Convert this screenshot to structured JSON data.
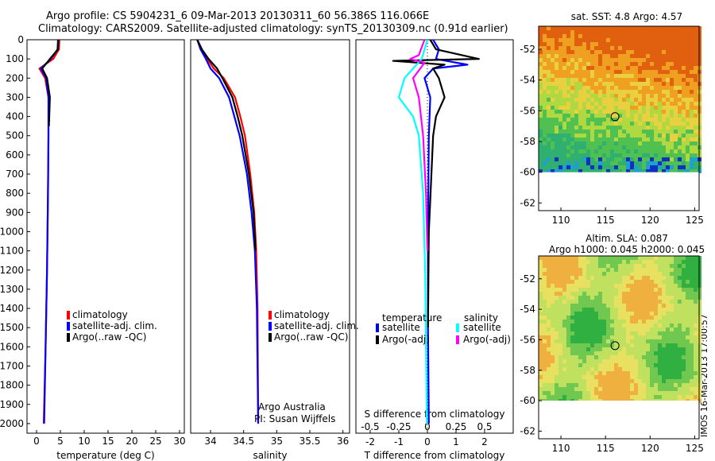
{
  "header": {
    "line1": "Argo profile: CS 5904231_6 09-Mar-2013 20130311_60 56.386S 116.066E",
    "line2": "Climatology: CARS2009. Satellite-adjusted climatology: synTS_20130309.nc (0.91d earlier)"
  },
  "stamp": "IMOS 16-Mar-2013 17:00:57",
  "colors": {
    "climatology": "#ff0000",
    "satellite": "#0000ff",
    "argo": "#000000",
    "satellite_salinity": "#00ffff",
    "argo_salinity": "#ff00ff"
  },
  "chart_data": [
    {
      "type": "line",
      "xlabel": "temperature (deg C)",
      "ylabel": "",
      "xlim": [
        -2,
        31
      ],
      "ylim": [
        2050,
        0
      ],
      "xticks": [
        0,
        5,
        10,
        15,
        20,
        25,
        30
      ],
      "yticks": [
        0,
        100,
        200,
        300,
        400,
        500,
        600,
        700,
        800,
        900,
        1000,
        1100,
        1200,
        1300,
        1400,
        1500,
        1600,
        1700,
        1800,
        1900,
        2000
      ],
      "legend": [
        "climatology",
        "satellite-adj. clim.",
        "Argo(..raw -QC)"
      ],
      "series": [
        {
          "name": "climatology",
          "depth": [
            0,
            50,
            100,
            150,
            200,
            300,
            500,
            800,
            1200,
            1600,
            2000
          ],
          "values": [
            4.8,
            4.7,
            3.5,
            0.6,
            1.8,
            2.5,
            2.5,
            2.4,
            2.2,
            1.9,
            1.5
          ]
        },
        {
          "name": "satellite-adj. clim.",
          "depth": [
            0,
            50,
            100,
            150,
            200,
            300,
            500,
            800,
            1200,
            1600,
            2000
          ],
          "values": [
            4.5,
            4.4,
            3.0,
            0.9,
            2.0,
            2.5,
            2.5,
            2.4,
            2.2,
            1.9,
            1.6
          ]
        },
        {
          "name": "Argo(..raw -QC)",
          "depth": [
            0,
            50,
            100,
            150,
            200,
            300,
            450
          ],
          "values": [
            4.6,
            4.5,
            2.8,
            1.2,
            2.2,
            2.8,
            2.6
          ]
        }
      ]
    },
    {
      "type": "line",
      "xlabel": "salinity",
      "xlim": [
        33.7,
        36.1
      ],
      "ylim": [
        2050,
        0
      ],
      "xticks": [
        34,
        34.5,
        35,
        35.5,
        36
      ],
      "legend": [
        "climatology",
        "satellite-adj. clim.",
        "Argo(..raw -QC)"
      ],
      "credit": [
        "Argo Australia",
        "PI: Susan Wijffels"
      ],
      "series": [
        {
          "name": "climatology",
          "depth": [
            0,
            50,
            100,
            150,
            200,
            300,
            400,
            500,
            700,
            900,
            1100,
            1400,
            2000
          ],
          "values": [
            33.8,
            33.85,
            33.95,
            34.05,
            34.2,
            34.37,
            34.45,
            34.52,
            34.6,
            34.66,
            34.69,
            34.71,
            34.72
          ]
        },
        {
          "name": "satellite-adj. clim.",
          "depth": [
            0,
            50,
            100,
            150,
            200,
            300,
            400,
            500,
            700,
            900,
            1100,
            1400,
            2000
          ],
          "values": [
            33.8,
            33.85,
            33.93,
            34.0,
            34.13,
            34.28,
            34.36,
            34.44,
            34.55,
            34.62,
            34.67,
            34.7,
            34.72
          ]
        },
        {
          "name": "Argo(..raw -QC)",
          "depth": [
            0,
            50,
            100,
            150,
            200,
            300,
            400,
            500,
            700,
            900,
            1100
          ],
          "values": [
            33.8,
            33.87,
            33.97,
            34.1,
            34.18,
            34.33,
            34.41,
            34.48,
            34.58,
            34.65,
            34.68
          ]
        }
      ]
    },
    {
      "type": "line",
      "xlabel": "T difference from climatology",
      "xlabel2": "S difference from climatology",
      "xlim": [
        -2.5,
        3
      ],
      "xticks": [
        -2,
        -1,
        0,
        1,
        2
      ],
      "xticks2_labels": [
        "-0.5",
        "-0.25",
        "0",
        "0.25",
        "0.5"
      ],
      "ylim": [
        2050,
        0
      ],
      "legend_temp_title": "temperature",
      "legend_sal_title": "salinity",
      "legend_temp": [
        "satellite",
        "Argo(-adj)"
      ],
      "legend_sal": [
        "satellite",
        "Argo(-adj)"
      ],
      "series": [
        {
          "name": "T satellite",
          "depth": [
            0,
            50,
            100,
            130,
            150,
            200,
            300,
            500,
            1000,
            1500,
            2000
          ],
          "values": [
            0.2,
            0.4,
            0.3,
            1.4,
            0.2,
            -0.1,
            0.1,
            0.05,
            0.02,
            0.02,
            0.05
          ]
        },
        {
          "name": "T Argo(-adj)",
          "depth": [
            0,
            50,
            100,
            110,
            130,
            150,
            200,
            300,
            400,
            500,
            1000,
            1500
          ],
          "values": [
            0.1,
            0.3,
            1.8,
            -1.2,
            0.6,
            0.2,
            0.4,
            0.6,
            0.3,
            0.2,
            0.05,
            0.02
          ]
        },
        {
          "name": "S satellite",
          "depth": [
            0,
            100,
            200,
            300,
            400,
            500,
            800,
            1200,
            1600,
            2000
          ],
          "values": [
            0.0,
            -0.2,
            -0.8,
            -1.0,
            -0.5,
            -0.3,
            -0.15,
            -0.08,
            -0.05,
            -0.02
          ]
        },
        {
          "name": "S Argo(-adj)",
          "depth": [
            0,
            80,
            100,
            120,
            200,
            300,
            500,
            800,
            1100
          ],
          "values": [
            -0.1,
            -0.3,
            -0.6,
            -0.1,
            -0.5,
            -0.3,
            -0.15,
            -0.05,
            0.0
          ]
        }
      ]
    },
    {
      "type": "heatmap",
      "title": "sat. SST: 4.8 Argo: 4.57",
      "xticks": [
        110,
        115,
        120,
        125
      ],
      "yticks": [
        -52,
        -54,
        -56,
        -58,
        -60,
        -62
      ],
      "xlim": [
        107.5,
        125.5
      ],
      "ylim": [
        -62.5,
        -50.5
      ],
      "argo_position": [
        116.066,
        -56.386
      ]
    },
    {
      "type": "heatmap",
      "title": "Altim. SLA: 0.087",
      "subtitle": "Argo h1000: 0.045 h2000: 0.045",
      "xticks": [
        110,
        115,
        120,
        125
      ],
      "yticks": [
        -52,
        -54,
        -56,
        -58,
        -60,
        -62
      ],
      "xlim": [
        107.5,
        125.5
      ],
      "ylim": [
        -62.5,
        -50.5
      ],
      "argo_position": [
        116.066,
        -56.386
      ]
    }
  ]
}
